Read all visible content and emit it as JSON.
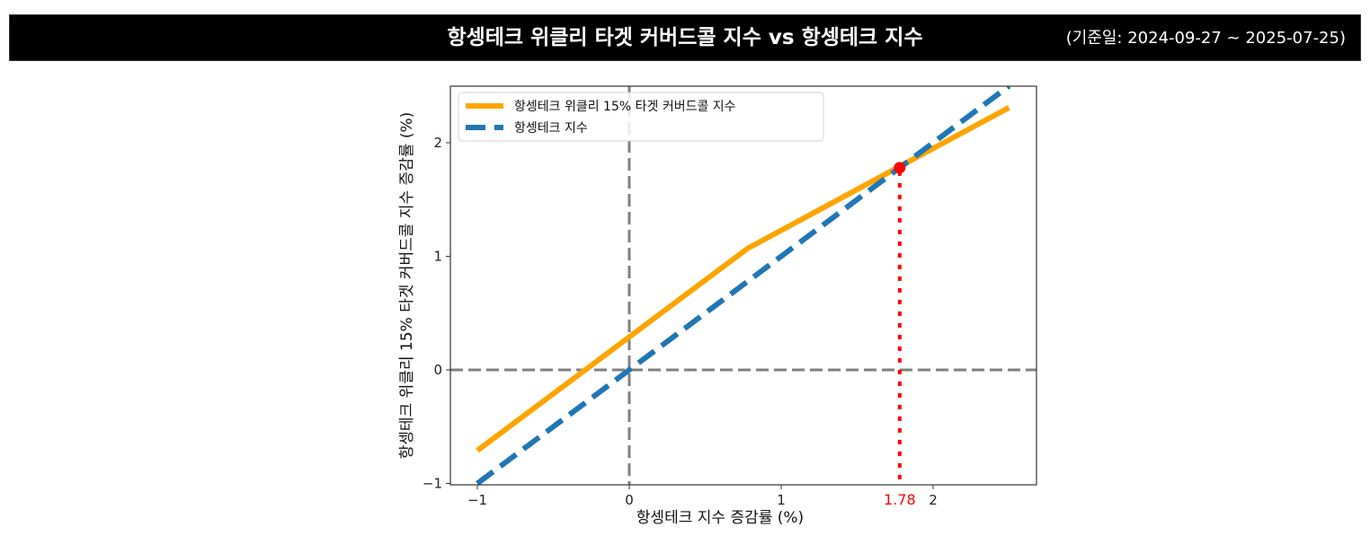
{
  "header": {
    "title": "항셍테크 위클리 타겟 커버드콜 지수 vs 항셍테크 지수",
    "period": "(기준일: 2024-09-27 ~ 2025-07-25)"
  },
  "chart_data": {
    "type": "line",
    "title": "항셍테크 위클리 타겟 커버드콜 지수 vs 항셍테크 지수",
    "xlabel": "항셍테크 지수 증감률 (%)",
    "ylabel": "항셍테크 위클리 15% 타겟 커버드콜  지수 증감률 (%)",
    "xlim": [
      -1.2,
      2.7
    ],
    "ylim": [
      -1.0,
      2.5
    ],
    "xticks": [
      -1,
      0,
      1,
      2
    ],
    "xtick_labels": [
      "−1",
      "0",
      "1",
      "2"
    ],
    "yticks": [
      -1,
      0,
      1,
      2
    ],
    "ytick_labels": [
      "−1",
      "0",
      "1",
      "2"
    ],
    "grid": false,
    "legend_position": "upper left",
    "series": [
      {
        "name": "항셍테크 위클리 15% 타겟 커버드콜  지수",
        "color": "#FFA500",
        "style": "solid",
        "x": [
          -1.0,
          0.78,
          2.5
        ],
        "y": [
          -0.71,
          1.07,
          2.31
        ]
      },
      {
        "name": "항셍테크 지수",
        "color": "#1F77B4",
        "style": "dashed",
        "x": [
          -1.0,
          2.5
        ],
        "y": [
          -1.0,
          2.5
        ]
      }
    ],
    "reference_lines": [
      {
        "orientation": "horizontal",
        "value": 0,
        "color": "#808080",
        "style": "dashed"
      },
      {
        "orientation": "vertical",
        "value": 0,
        "color": "#808080",
        "style": "dashed"
      }
    ],
    "annotations": [
      {
        "type": "point",
        "x": 1.78,
        "y": 1.78,
        "color": "#FF0000"
      },
      {
        "type": "vline",
        "x": 1.78,
        "from_y": -1.0,
        "to_y": 1.78,
        "color": "#FF0000",
        "style": "dotted"
      },
      {
        "type": "xtick_label",
        "x": 1.78,
        "text": "1.78",
        "color": "#FF0000"
      }
    ]
  }
}
